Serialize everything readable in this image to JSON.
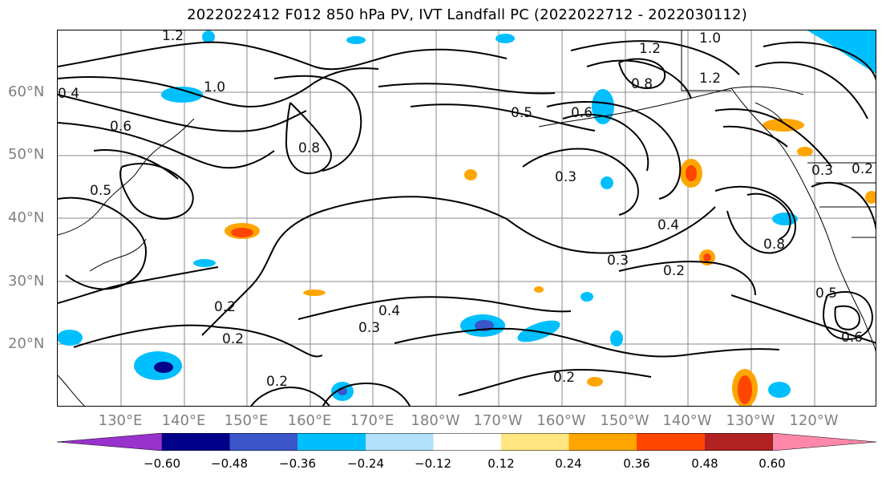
{
  "title": "2022022412 F012 850 hPa PV, IVT Landfall PC (2022022712 - 2022030112)",
  "lat_labels": [
    "60°N",
    "50°N",
    "40°N",
    "30°N",
    "20°N"
  ],
  "lon_labels": [
    "130°E",
    "140°E",
    "150°E",
    "160°E",
    "170°E",
    "180°W",
    "170°W",
    "160°W",
    "150°W",
    "140°W",
    "130°W",
    "120°W"
  ],
  "contour_labels": [
    "1.2",
    "1.2",
    "1.0",
    "0.8",
    "0.6",
    "0.5",
    "0.4",
    "0.3",
    "0.2",
    "0.2",
    "0.2",
    "0.4",
    "0.3",
    "0.2",
    "0.3",
    "0.2",
    "0.4",
    "0.6",
    "0.5",
    "0.8",
    "0.3",
    "0.2",
    "0.8",
    "0.6",
    "0.5",
    "1.2",
    "1.0"
  ],
  "colorbar": {
    "ticks": [
      "−0.60",
      "−0.48",
      "−0.36",
      "−0.24",
      "−0.12",
      "0.12",
      "0.24",
      "0.36",
      "0.48",
      "0.60"
    ],
    "colors": [
      "#9932cc",
      "#00008b",
      "#3a56c8",
      "#00bfff",
      "#b0e0fa",
      "#ffffff",
      "#ffe680",
      "#ffa500",
      "#ff4500",
      "#b22222",
      "#ff88aa"
    ]
  }
}
